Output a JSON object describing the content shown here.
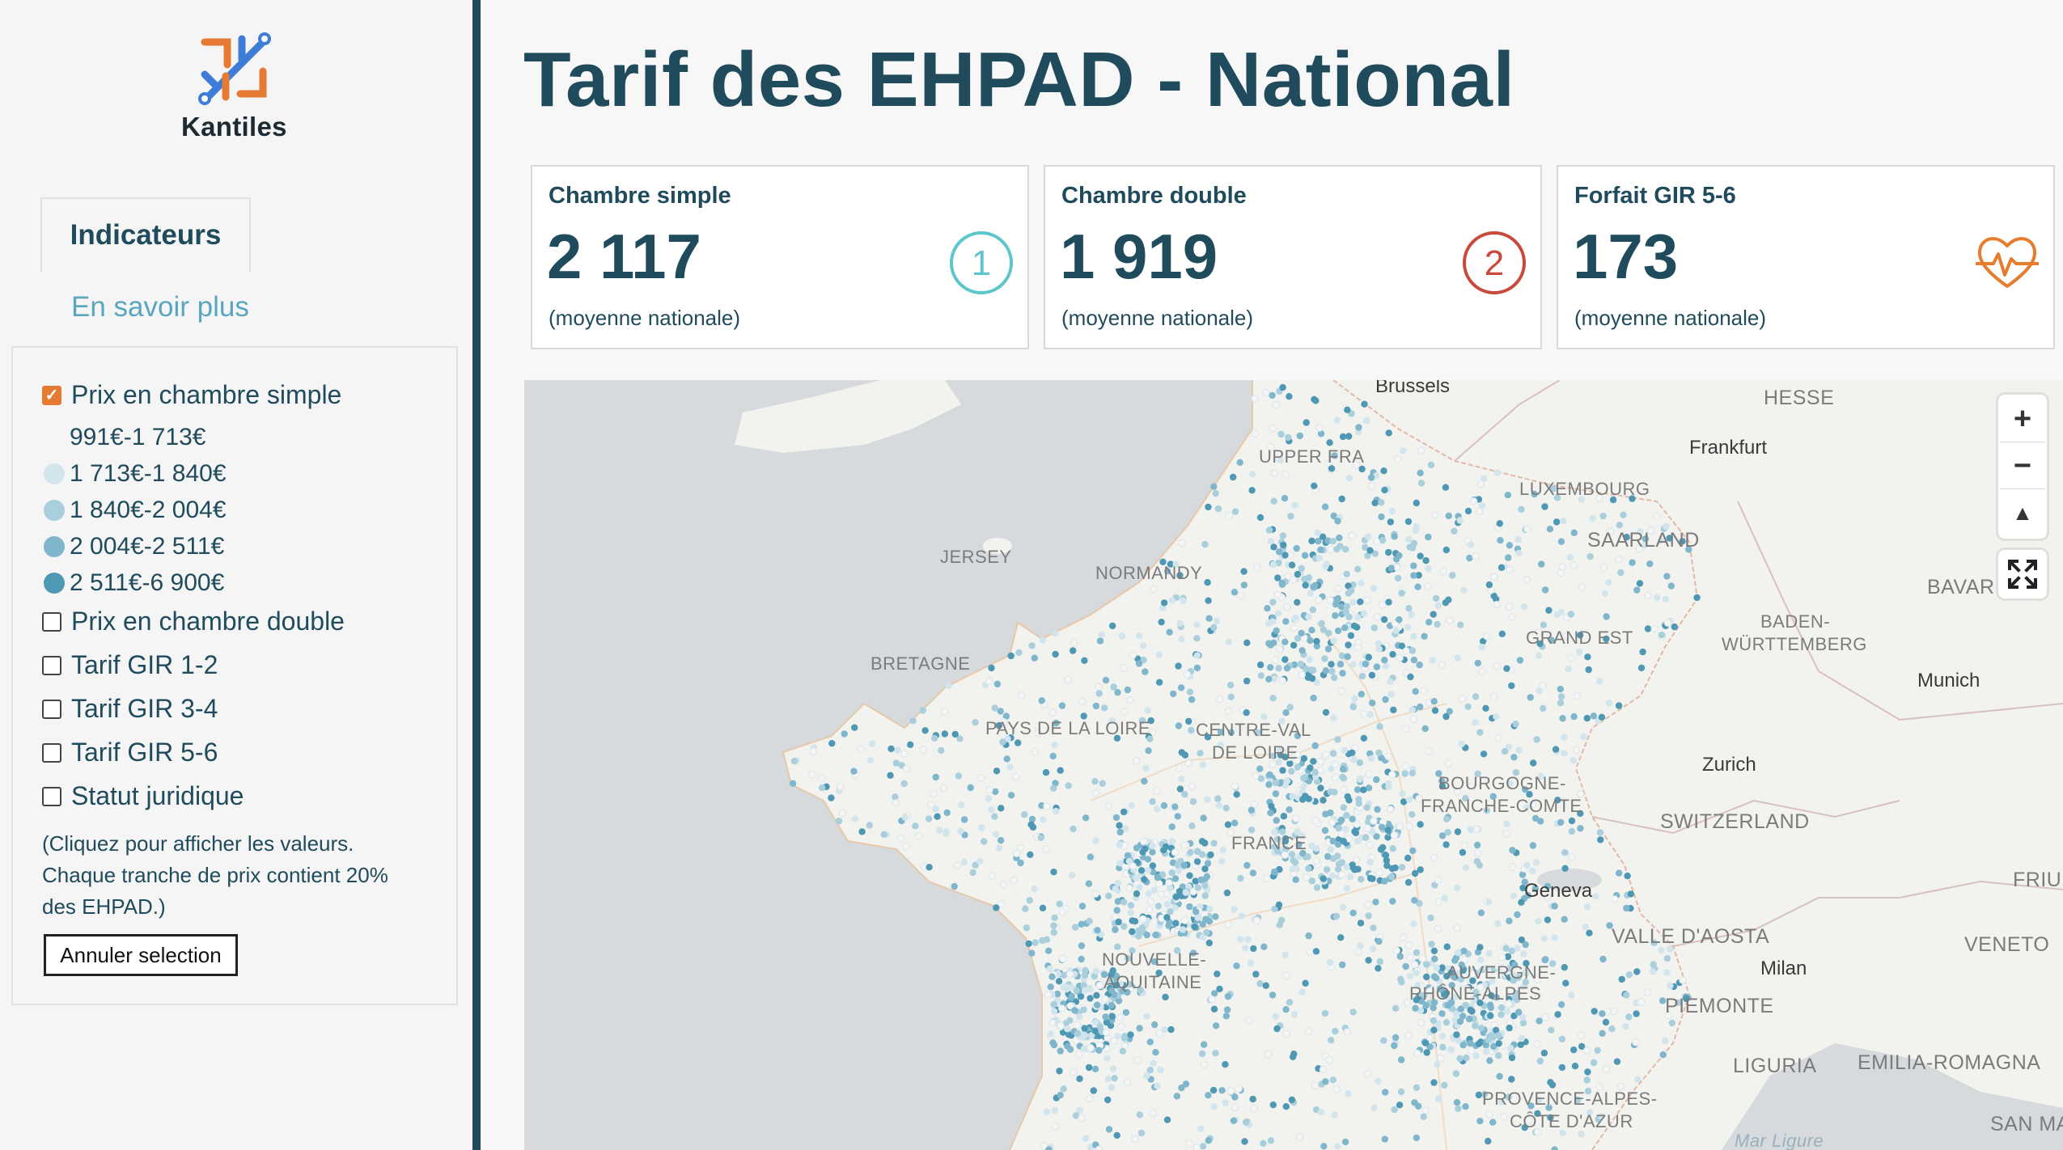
{
  "brand": {
    "name": "Kantiles"
  },
  "sidebar": {
    "tabs": [
      {
        "label": "Indicateurs",
        "active": true
      },
      {
        "label": "En savoir plus",
        "active": false
      }
    ],
    "options": [
      {
        "label": "Prix en chambre simple",
        "checked": true
      },
      {
        "label": "Prix en chambre double",
        "checked": false
      },
      {
        "label": "Tarif GIR 1-2",
        "checked": false
      },
      {
        "label": "Tarif GIR 3-4",
        "checked": false
      },
      {
        "label": "Tarif GIR 5-6",
        "checked": false
      },
      {
        "label": "Statut juridique",
        "checked": false
      }
    ],
    "legend": [
      {
        "label": "991€-1 713€",
        "color": "#f5f5f5"
      },
      {
        "label": "1 713€-1 840€",
        "color": "#d3e5ec"
      },
      {
        "label": "1 840€-2 004€",
        "color": "#a9cedc"
      },
      {
        "label": "2 004€-2 511€",
        "color": "#7fb6cb"
      },
      {
        "label": "2 511€-6 900€",
        "color": "#4f98b4"
      }
    ],
    "note": "(Cliquez pour afficher les valeurs. Chaque tranche de prix contient 20% des EHPAD.)",
    "cancel_label": "Annuler selection"
  },
  "page": {
    "title": "Tarif des EHPAD - National"
  },
  "cards": [
    {
      "label": "Chambre simple",
      "value": "2 117",
      "sub": "(moyenne nationale)",
      "icon": "number-1-circle-icon",
      "icon_text": "1",
      "color": "#5cc6cc"
    },
    {
      "label": "Chambre double",
      "value": "1 919",
      "sub": "(moyenne nationale)",
      "icon": "number-2-circle-icon",
      "icon_text": "2",
      "color": "#c94a3d"
    },
    {
      "label": "Forfait GIR 5-6",
      "value": "173",
      "sub": "(moyenne nationale)",
      "icon": "heart-pulse-icon",
      "icon_text": "",
      "color": "#e67d2e"
    }
  ],
  "map": {
    "labels": [
      {
        "text": "HESSE",
        "kind": "region"
      },
      {
        "text": "Frankfurt",
        "kind": "city"
      },
      {
        "text": "UPPER FRA",
        "kind": "region"
      },
      {
        "text": "LUXEMBOURG",
        "kind": "region"
      },
      {
        "text": "SAARLAND",
        "kind": "region"
      },
      {
        "text": "JERSEY",
        "kind": "region"
      },
      {
        "text": "NORMANDY",
        "kind": "region"
      },
      {
        "text": "BAVAR",
        "kind": "region"
      },
      {
        "text": "BADEN-",
        "kind": "region"
      },
      {
        "text": "WÜRTTEMBERG",
        "kind": "region"
      },
      {
        "text": "GRAND EST",
        "kind": "region"
      },
      {
        "text": "Munich",
        "kind": "city"
      },
      {
        "text": "BRETAGNE",
        "kind": "region"
      },
      {
        "text": "PAYS DE LA LOIRE",
        "kind": "region"
      },
      {
        "text": "CENTRE-VAL",
        "kind": "region"
      },
      {
        "text": "DE LOIRE",
        "kind": "region"
      },
      {
        "text": "Zurich",
        "kind": "city"
      },
      {
        "text": "BOURGOGNE-",
        "kind": "region"
      },
      {
        "text": "FRANCHE-COMTE",
        "kind": "region"
      },
      {
        "text": "SWITZERLAND",
        "kind": "region"
      },
      {
        "text": "FRANCE",
        "kind": "region"
      },
      {
        "text": "FRIUL",
        "kind": "region"
      },
      {
        "text": "Geneva",
        "kind": "city"
      },
      {
        "text": "VALLE D'AOSTA",
        "kind": "region"
      },
      {
        "text": "VENETO",
        "kind": "region"
      },
      {
        "text": "NOUVELLE-",
        "kind": "region"
      },
      {
        "text": "AQUITAINE",
        "kind": "region"
      },
      {
        "text": "AUVERGNE-",
        "kind": "region"
      },
      {
        "text": "RHÔNE-ALPES",
        "kind": "region"
      },
      {
        "text": "Milan",
        "kind": "city"
      },
      {
        "text": "PIEMONTE",
        "kind": "region"
      },
      {
        "text": "LIGURIA",
        "kind": "region"
      },
      {
        "text": "EMILIA-ROMAGNA",
        "kind": "region"
      },
      {
        "text": "PROVENCE-ALPES-",
        "kind": "region"
      },
      {
        "text": "CÔTE D'AZUR",
        "kind": "region"
      },
      {
        "text": "SAN MA",
        "kind": "region"
      },
      {
        "text": "Mar Ligure",
        "kind": "sea"
      },
      {
        "text": "Brussels",
        "kind": "city"
      }
    ],
    "controls": {
      "zoom_in": "+",
      "zoom_out": "−",
      "compass": "▲",
      "fullscreen": "⤢"
    }
  }
}
